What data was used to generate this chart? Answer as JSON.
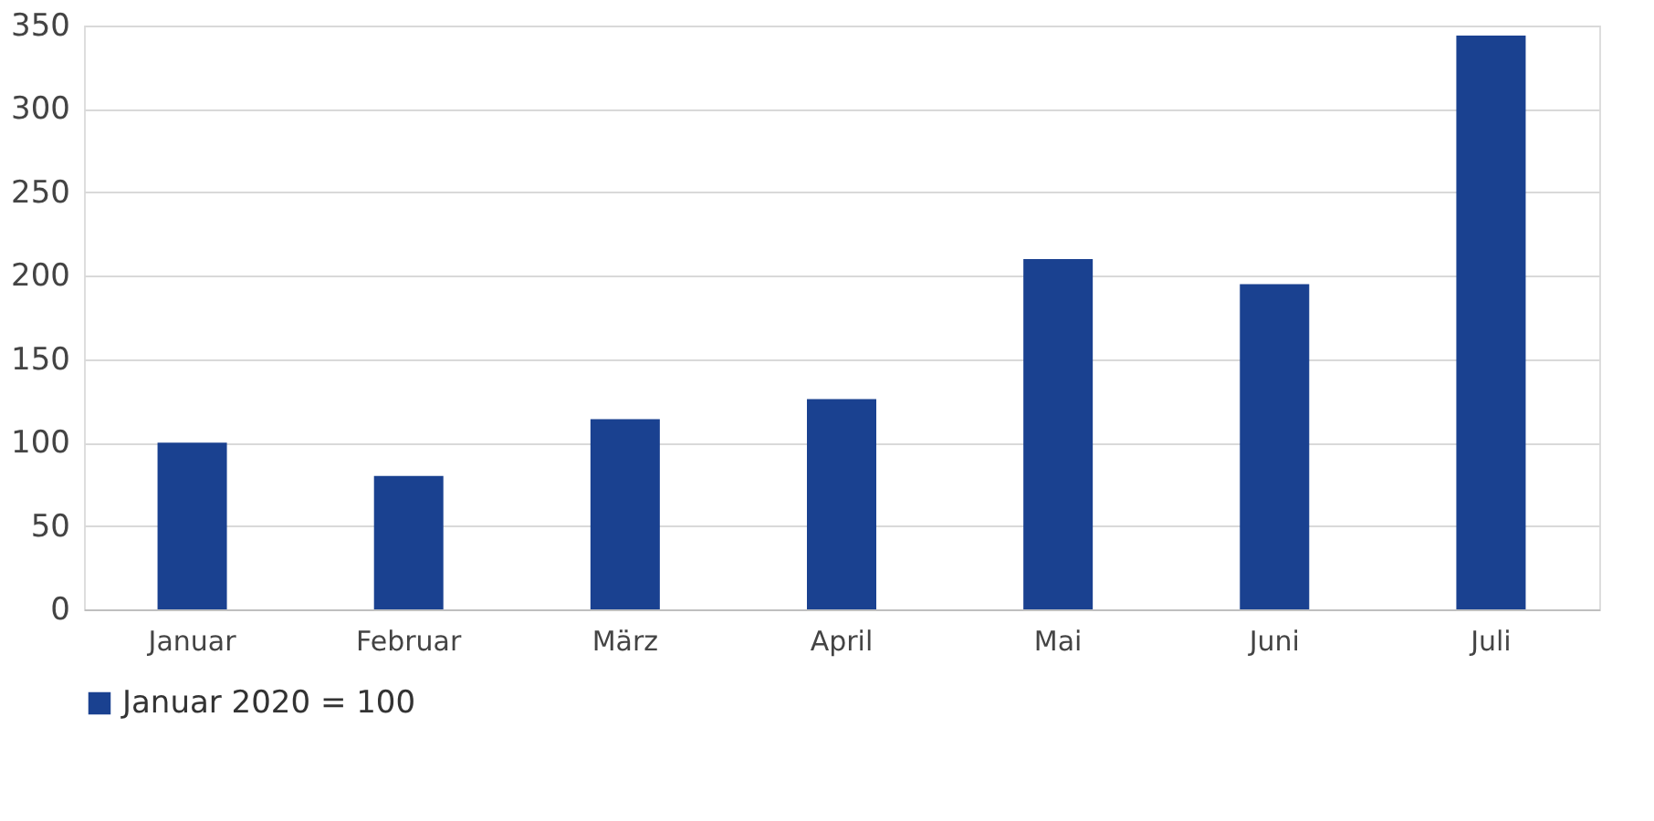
{
  "chart_data": {
    "type": "bar",
    "categories": [
      "Januar",
      "Februar",
      "März",
      "April",
      "Mai",
      "Juni",
      "Juli"
    ],
    "series": [
      {
        "name": "Januar 2020 = 100",
        "color": "#1a4190",
        "values": [
          100,
          80,
          114,
          126,
          210,
          195,
          344
        ]
      }
    ],
    "ylim": [
      0,
      350
    ],
    "yticks": [
      0,
      50,
      100,
      150,
      200,
      250,
      300,
      350
    ],
    "grid": "y",
    "legend": "bottom"
  }
}
